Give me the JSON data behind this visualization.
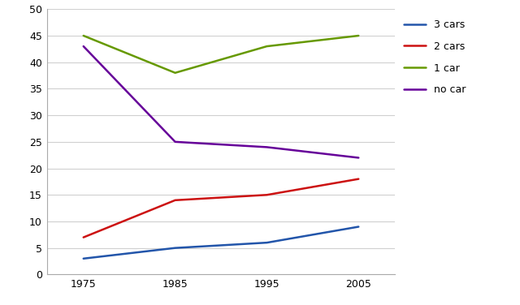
{
  "years": [
    1975,
    1985,
    1995,
    2005
  ],
  "series": {
    "3 cars": {
      "values": [
        3,
        5,
        6,
        9
      ],
      "color": "#2255aa",
      "linewidth": 1.8
    },
    "2 cars": {
      "values": [
        7,
        14,
        15,
        18
      ],
      "color": "#cc1111",
      "linewidth": 1.8
    },
    "1 car": {
      "values": [
        45,
        38,
        43,
        45
      ],
      "color": "#669900",
      "linewidth": 1.8
    },
    "no car": {
      "values": [
        43,
        25,
        24,
        22
      ],
      "color": "#660099",
      "linewidth": 1.8
    }
  },
  "ylim": [
    0,
    50
  ],
  "yticks": [
    0,
    5,
    10,
    15,
    20,
    25,
    30,
    35,
    40,
    45,
    50
  ],
  "xticks": [
    1975,
    1985,
    1995,
    2005
  ],
  "legend_order": [
    "3 cars",
    "2 cars",
    "1 car",
    "no car"
  ],
  "background_color": "#ffffff",
  "grid_color": "#d0d0d0",
  "tick_fontsize": 9,
  "legend_fontsize": 9
}
